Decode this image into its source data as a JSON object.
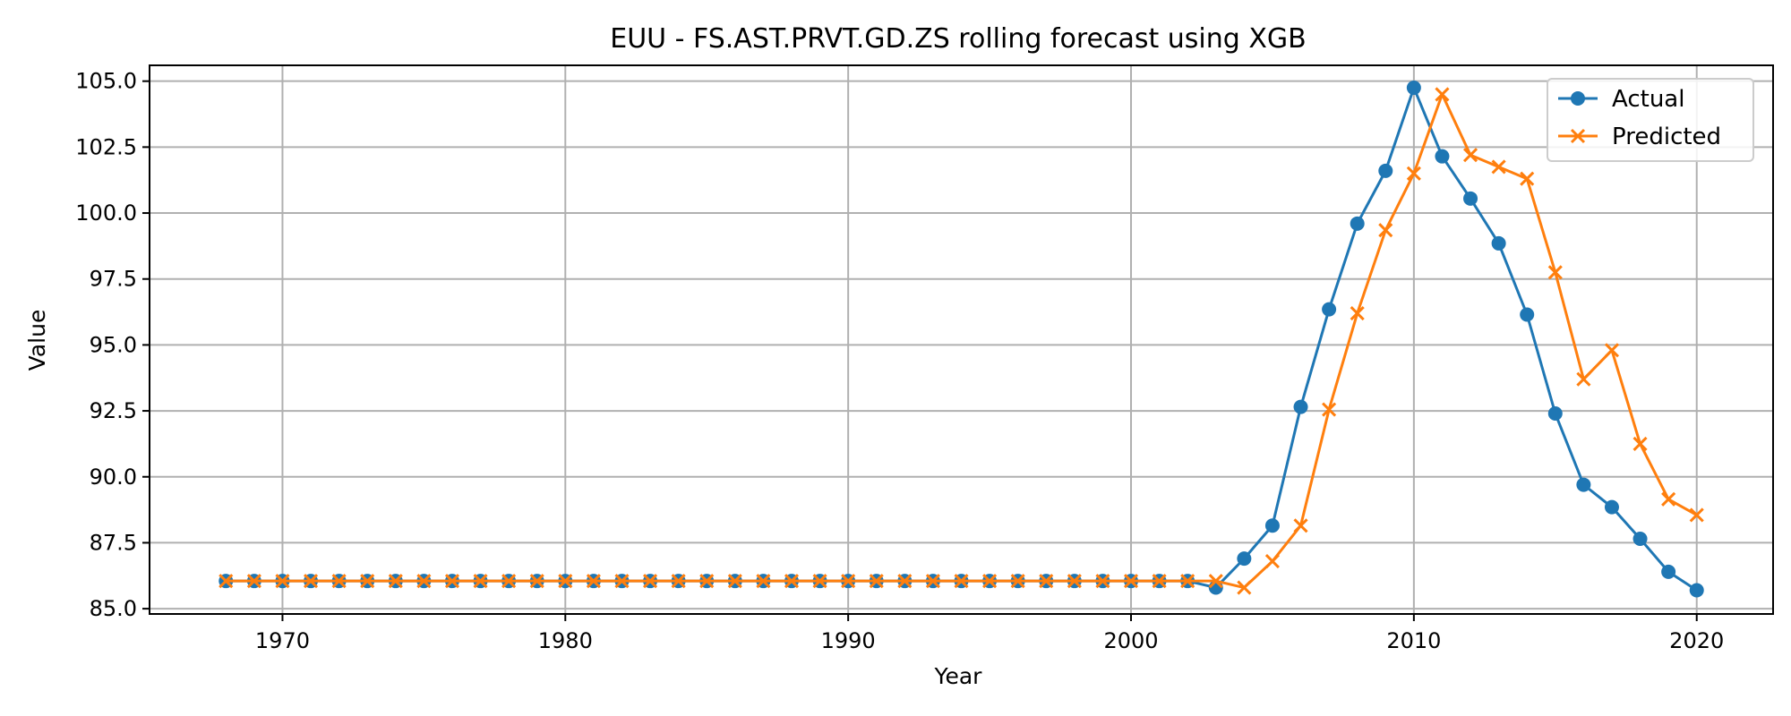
{
  "chart_data": {
    "type": "line",
    "title": "EUU - FS.AST.PRVT.GD.ZS rolling forecast using XGB",
    "xlabel": "Year",
    "ylabel": "Value",
    "xlim": [
      1965.3,
      2022.7
    ],
    "ylim": [
      84.8,
      105.6
    ],
    "grid": true,
    "legend_position": "upper right",
    "x_ticks": [
      1970,
      1980,
      1990,
      2000,
      2010,
      2020
    ],
    "x_tick_labels": [
      "1970",
      "1980",
      "1990",
      "2000",
      "2010",
      "2020"
    ],
    "y_ticks": [
      85.0,
      87.5,
      90.0,
      92.5,
      95.0,
      97.5,
      100.0,
      102.5,
      105.0
    ],
    "y_tick_labels": [
      "85.0",
      "87.5",
      "90.0",
      "92.5",
      "95.0",
      "97.5",
      "100.0",
      "102.5",
      "105.0"
    ],
    "x": [
      1968,
      1969,
      1970,
      1971,
      1972,
      1973,
      1974,
      1975,
      1976,
      1977,
      1978,
      1979,
      1980,
      1981,
      1982,
      1983,
      1984,
      1985,
      1986,
      1987,
      1988,
      1989,
      1990,
      1991,
      1992,
      1993,
      1994,
      1995,
      1996,
      1997,
      1998,
      1999,
      2000,
      2001,
      2002,
      2003,
      2004,
      2005,
      2006,
      2007,
      2008,
      2009,
      2010,
      2011,
      2012,
      2013,
      2014,
      2015,
      2016,
      2017,
      2018,
      2019,
      2020
    ],
    "series": [
      {
        "name": "Actual",
        "color": "#1f77b4",
        "marker": "circle",
        "values": [
          86.05,
          86.05,
          86.05,
          86.05,
          86.05,
          86.05,
          86.05,
          86.05,
          86.05,
          86.05,
          86.05,
          86.05,
          86.05,
          86.05,
          86.05,
          86.05,
          86.05,
          86.05,
          86.05,
          86.05,
          86.05,
          86.05,
          86.05,
          86.05,
          86.05,
          86.05,
          86.05,
          86.05,
          86.05,
          86.05,
          86.05,
          86.05,
          86.05,
          86.05,
          86.05,
          85.8,
          86.9,
          88.15,
          92.65,
          96.35,
          99.6,
          101.6,
          104.75,
          102.15,
          100.55,
          98.85,
          96.15,
          92.4,
          89.7,
          88.85,
          87.65,
          86.4,
          85.7
        ]
      },
      {
        "name": "Predicted",
        "color": "#ff7f0e",
        "marker": "x",
        "values": [
          86.05,
          86.05,
          86.05,
          86.05,
          86.05,
          86.05,
          86.05,
          86.05,
          86.05,
          86.05,
          86.05,
          86.05,
          86.05,
          86.05,
          86.05,
          86.05,
          86.05,
          86.05,
          86.05,
          86.05,
          86.05,
          86.05,
          86.05,
          86.05,
          86.05,
          86.05,
          86.05,
          86.05,
          86.05,
          86.05,
          86.05,
          86.05,
          86.05,
          86.05,
          86.05,
          86.05,
          85.8,
          86.8,
          88.15,
          92.55,
          96.2,
          99.35,
          101.5,
          104.5,
          102.2,
          101.75,
          101.3,
          97.75,
          93.7,
          94.8,
          91.25,
          89.15,
          88.55
        ]
      }
    ]
  }
}
